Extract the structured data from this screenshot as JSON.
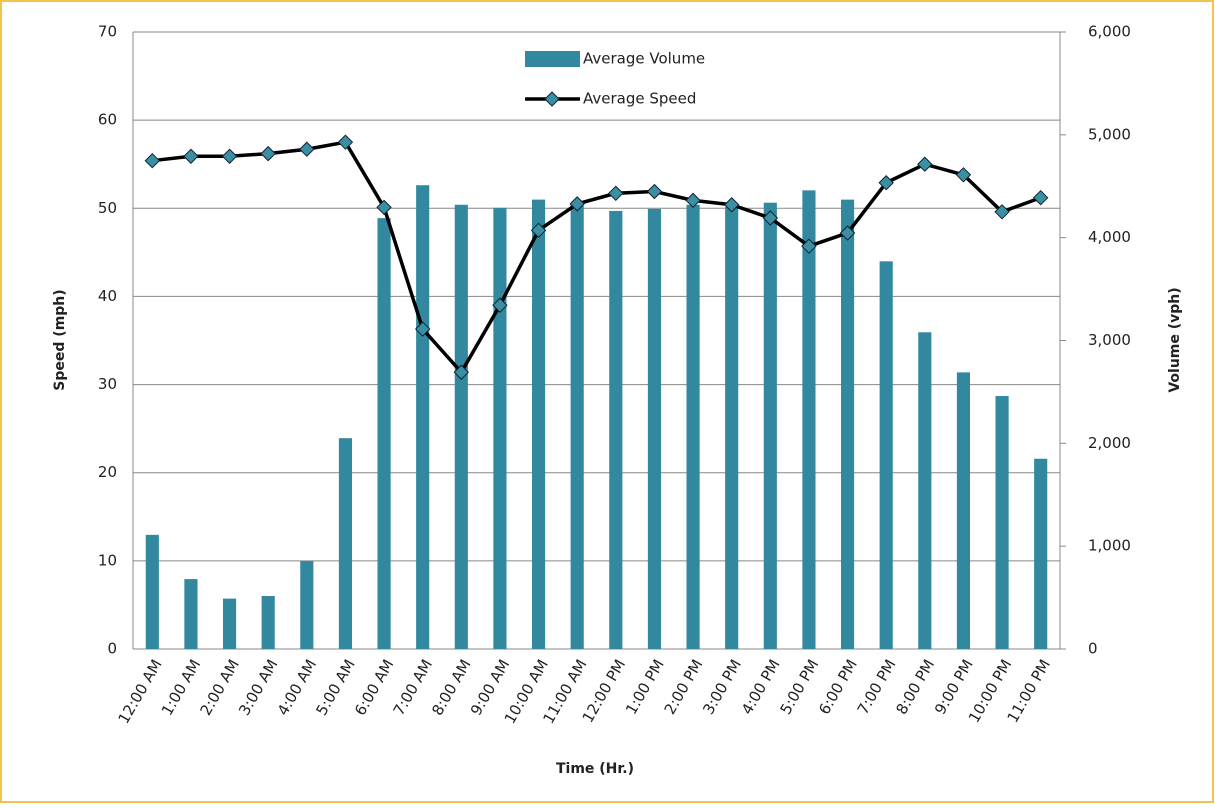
{
  "chart_data": {
    "type": "bar-line",
    "x_label": "Time (Hr.)",
    "y_label": "Speed (mph)",
    "y2_label": "Volume (vph)",
    "categories": [
      "12:00 AM",
      "1:00 AM",
      "2:00 AM",
      "3:00 AM",
      "4:00 AM",
      "5:00 AM",
      "6:00 AM",
      "7:00 AM",
      "8:00 AM",
      "9:00 AM",
      "10:00 AM",
      "11:00 AM",
      "12:00 PM",
      "1:00 PM",
      "2:00 PM",
      "3:00 PM",
      "4:00 PM",
      "5:00 PM",
      "6:00 PM",
      "7:00 PM",
      "8:00 PM",
      "9:00 PM",
      "10:00 PM",
      "11:00 PM"
    ],
    "series": [
      {
        "name": "Average Volume",
        "type": "bar",
        "axis": "y2",
        "color": "#31889f",
        "values": [
          1110,
          680,
          490,
          515,
          855,
          2050,
          4190,
          4510,
          4320,
          4290,
          4370,
          4340,
          4260,
          4280,
          4320,
          4300,
          4340,
          4460,
          4370,
          3770,
          3080,
          2690,
          2460,
          1850
        ]
      },
      {
        "name": "Average Speed",
        "type": "line",
        "axis": "y",
        "color": "#000000",
        "marker_color": "#3a8fa3",
        "values": [
          55.4,
          55.9,
          55.9,
          56.2,
          56.7,
          57.5,
          50.1,
          36.3,
          31.4,
          39.0,
          47.5,
          50.5,
          51.7,
          51.9,
          50.9,
          50.4,
          48.9,
          45.7,
          47.2,
          52.9,
          55.0,
          53.8,
          49.6,
          51.2
        ]
      }
    ],
    "ylim": [
      0,
      70
    ],
    "yticks": [
      0,
      10,
      20,
      30,
      40,
      50,
      60,
      70
    ],
    "y2lim": [
      0,
      6000
    ],
    "y2ticks": [
      0,
      {
        "value": 1000,
        "label": "1,000"
      },
      {
        "value": 2000,
        "label": "2,000"
      },
      {
        "value": 3000,
        "label": "3,000"
      },
      {
        "value": 4000,
        "label": "4,000"
      },
      {
        "value": 5000,
        "label": "5,000"
      },
      {
        "value": 6000,
        "label": "6,000"
      }
    ],
    "grid": true,
    "legend": "top"
  }
}
